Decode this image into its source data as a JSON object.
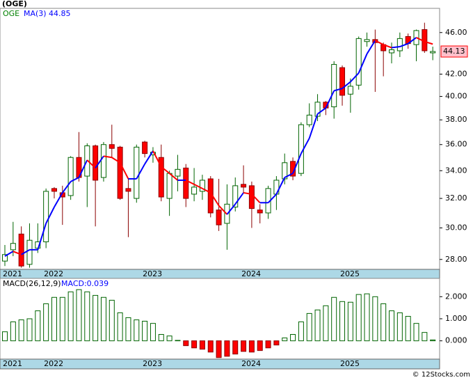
{
  "chart_data": [
    {
      "type": "candlestick",
      "title": "(OGE)",
      "symbol": "OGE",
      "log_scale": true,
      "categories": [
        "2021",
        null,
        null,
        null,
        null,
        "2022",
        null,
        null,
        null,
        null,
        null,
        null,
        null,
        null,
        null,
        null,
        null,
        "2023",
        null,
        null,
        null,
        null,
        null,
        null,
        null,
        null,
        null,
        null,
        null,
        "2024",
        null,
        null,
        null,
        null,
        null,
        null,
        null,
        null,
        null,
        null,
        null,
        "2025",
        null,
        null,
        null,
        null,
        null,
        null,
        null,
        null,
        null,
        null,
        null
      ],
      "open": [
        27.9,
        28.6,
        29.6,
        27.7,
        28.7,
        29.1,
        32.7,
        32.4,
        32.2,
        35.0,
        33.6,
        35.9,
        33.5,
        36.0,
        35.8,
        32.7,
        32.0,
        36.2,
        35.2,
        35.0,
        32.0,
        33.6,
        34.2,
        32.3,
        32.5,
        33.4,
        31.2,
        30.3,
        31.4,
        33.0,
        32.9,
        31.2,
        31.0,
        32.3,
        33.4,
        34.7,
        33.8,
        37.6,
        38.3,
        39.5,
        39.1,
        42.6,
        40.2,
        41.0,
        45.1,
        45.3,
        44.8,
        44.0,
        44.2,
        45.6,
        44.8,
        46.3,
        44.0
      ],
      "high": [
        28.9,
        30.4,
        30.1,
        30.3,
        30.3,
        32.7,
        32.8,
        32.9,
        35.1,
        37.0,
        36.1,
        36.0,
        36.2,
        37.6,
        35.9,
        33.4,
        36.0,
        36.3,
        35.8,
        36.0,
        34.0,
        35.2,
        34.5,
        34.2,
        33.7,
        33.6,
        33.4,
        33.0,
        33.5,
        34.4,
        33.2,
        31.6,
        32.9,
        33.6,
        35.3,
        35.0,
        37.8,
        39.4,
        40.2,
        39.6,
        43.2,
        42.8,
        41.6,
        45.6,
        46.0,
        46.3,
        45.0,
        45.0,
        46.0,
        45.9,
        46.3,
        47.0,
        44.6
      ],
      "low": [
        27.6,
        28.2,
        27.5,
        27.5,
        28.4,
        28.7,
        32.0,
        30.2,
        31.9,
        33.2,
        31.4,
        30.1,
        33.2,
        35.0,
        31.9,
        29.4,
        31.7,
        35.0,
        34.6,
        31.8,
        30.8,
        32.5,
        31.4,
        31.8,
        31.9,
        30.7,
        29.8,
        28.6,
        31.1,
        32.4,
        30.0,
        30.3,
        30.6,
        31.2,
        33.0,
        33.3,
        33.6,
        37.4,
        37.9,
        38.4,
        38.1,
        39.2,
        38.6,
        40.6,
        44.6,
        40.4,
        41.8,
        43.0,
        43.6,
        44.4,
        43.2,
        44.0,
        43.3
      ],
      "close": [
        28.3,
        29.0,
        27.6,
        29.2,
        29.1,
        32.5,
        32.5,
        32.1,
        35.0,
        33.5,
        35.9,
        33.3,
        36.0,
        35.7,
        32.0,
        32.5,
        35.8,
        35.3,
        35.4,
        32.1,
        33.8,
        34.1,
        32.0,
        32.8,
        33.3,
        31.0,
        30.2,
        31.6,
        32.9,
        32.8,
        31.3,
        31.0,
        32.7,
        33.3,
        34.6,
        33.6,
        37.6,
        38.4,
        39.5,
        39.0,
        42.9,
        40.1,
        40.9,
        45.4,
        45.3,
        45.0,
        44.2,
        44.3,
        45.4,
        44.9,
        46.2,
        44.2,
        44.13
      ],
      "last_label": "44.13",
      "up_color": "#006400",
      "down_color": "#ff0000",
      "ma": {
        "name": "MA(3)",
        "value_label": "44.85",
        "up_color": "#0000ff",
        "down_color": "#ff0000",
        "values": [
          28.2,
          28.5,
          28.3,
          28.6,
          28.6,
          30.3,
          31.4,
          32.4,
          33.2,
          33.5,
          34.8,
          34.2,
          35.1,
          35.0,
          34.6,
          33.4,
          33.4,
          34.5,
          35.5,
          34.3,
          33.8,
          33.3,
          33.3,
          33.0,
          32.7,
          32.4,
          31.5,
          30.9,
          31.6,
          32.4,
          32.3,
          31.7,
          31.7,
          32.3,
          33.5,
          33.8,
          35.3,
          36.5,
          38.5,
          39.0,
          40.5,
          40.7,
          41.3,
          42.1,
          43.9,
          45.2,
          44.8,
          44.5,
          44.6,
          44.9,
          45.5,
          45.1,
          44.85
        ]
      },
      "ylim": [
        27.4,
        48.5
      ],
      "yticks": [
        {
          "value": 28,
          "label": "28.00"
        },
        {
          "value": 30,
          "label": "30.00"
        },
        {
          "value": 32,
          "label": "32.00"
        },
        {
          "value": 34,
          "label": "34.00"
        },
        {
          "value": 36,
          "label": "36.00"
        },
        {
          "value": 38,
          "label": "38.00"
        },
        {
          "value": 40,
          "label": "40.00"
        },
        {
          "value": 42,
          "label": "42.00"
        },
        {
          "value": 46,
          "label": "46.00"
        }
      ]
    },
    {
      "type": "bar",
      "title": "MACD(26,12,9)",
      "value_label": "MACD:0.039",
      "categories": [
        "2021",
        null,
        null,
        null,
        null,
        "2022",
        null,
        null,
        null,
        null,
        null,
        null,
        null,
        null,
        null,
        null,
        null,
        "2023",
        null,
        null,
        null,
        null,
        null,
        null,
        null,
        null,
        null,
        null,
        null,
        "2024",
        null,
        null,
        null,
        null,
        null,
        null,
        null,
        null,
        null,
        null,
        null,
        "2025",
        null,
        null,
        null,
        null,
        null,
        null,
        null,
        null,
        null,
        null,
        null
      ],
      "values": [
        0.41,
        0.86,
        0.95,
        1.0,
        1.36,
        1.68,
        1.97,
        1.97,
        2.22,
        2.32,
        2.22,
        2.06,
        1.97,
        1.84,
        1.27,
        1.05,
        0.95,
        0.89,
        0.79,
        0.29,
        0.22,
        0.02,
        -0.22,
        -0.32,
        -0.38,
        -0.51,
        -0.76,
        -0.7,
        -0.6,
        -0.48,
        -0.51,
        -0.44,
        -0.32,
        -0.19,
        0.13,
        0.29,
        0.86,
        1.24,
        1.4,
        1.59,
        1.97,
        1.78,
        1.75,
        2.1,
        2.13,
        2.0,
        1.68,
        1.36,
        1.27,
        1.11,
        0.79,
        0.38,
        0.039
      ],
      "up_color": "#006400",
      "down_color": "#ff0000",
      "ylim": [
        -0.83,
        2.83
      ],
      "yticks": [
        {
          "value": 0,
          "label": "0.000"
        },
        {
          "value": 1,
          "label": "1.000"
        },
        {
          "value": 2,
          "label": "2.000"
        }
      ],
      "credit": "© 12Stocks.com"
    }
  ]
}
